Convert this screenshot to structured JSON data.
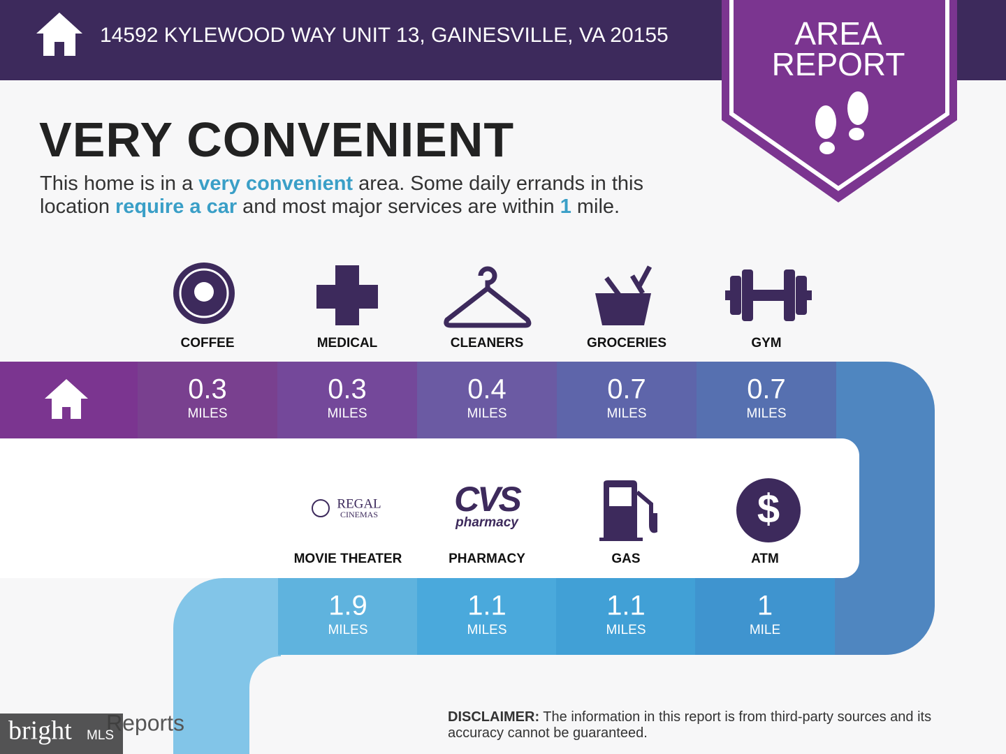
{
  "header": {
    "address": "14592 KYLEWOOD WAY UNIT 13, GAINESVILLE, VA 20155"
  },
  "badge": {
    "lines": [
      "AREA",
      "REPORT"
    ]
  },
  "headline": "VERY CONVENIENT",
  "summary": [
    "This home is in a ",
    "very convenient",
    " area. Some daily errands in this location ",
    "require a car",
    " and most major services are within ",
    "1",
    " mile."
  ],
  "row1": [
    {
      "label": "COFFEE",
      "distance": 0.3,
      "unit": "MILES"
    },
    {
      "label": "MEDICAL",
      "distance": 0.3,
      "unit": "MILES"
    },
    {
      "label": "CLEANERS",
      "distance": 0.4,
      "unit": "MILES"
    },
    {
      "label": "GROCERIES",
      "distance": 0.7,
      "unit": "MILES"
    },
    {
      "label": "GYM",
      "distance": 0.7,
      "unit": "MILES"
    }
  ],
  "row2": [
    {
      "label": "MOVIE THEATER",
      "logo": [
        "REGAL",
        "CINEMAS"
      ],
      "distance": 1.9,
      "unit": "MILES"
    },
    {
      "label": "PHARMACY",
      "logo": [
        "CVS",
        "pharmacy"
      ],
      "distance": 1.1,
      "unit": "MILES"
    },
    {
      "label": "GAS",
      "distance": 1.1,
      "unit": "MILES"
    },
    {
      "label": "ATM",
      "icon": "$",
      "distance": 1,
      "unit": "MILE"
    }
  ],
  "footer": {
    "brand": "Reports",
    "watermark": [
      "bright",
      "MLS"
    ],
    "disclaimer": {
      "lead": "DISCLAIMER:",
      "text": " The information in this report is from third-party sources and its accuracy cannot be guaranteed."
    }
  }
}
